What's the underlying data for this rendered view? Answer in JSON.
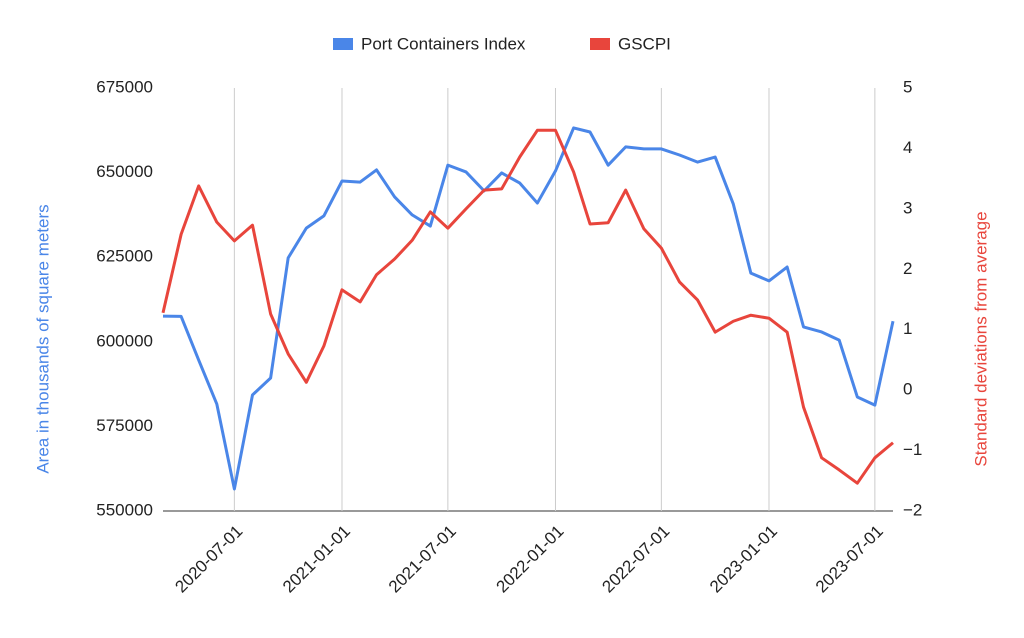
{
  "chart_data": {
    "type": "line",
    "x": [
      "2020-03-01",
      "2020-04-01",
      "2020-05-01",
      "2020-06-01",
      "2020-07-01",
      "2020-08-01",
      "2020-09-01",
      "2020-10-01",
      "2020-11-01",
      "2020-12-01",
      "2021-01-01",
      "2021-02-01",
      "2021-03-01",
      "2021-04-01",
      "2021-05-01",
      "2021-06-01",
      "2021-07-01",
      "2021-08-01",
      "2021-09-01",
      "2021-10-01",
      "2021-11-01",
      "2021-12-01",
      "2022-01-01",
      "2022-02-01",
      "2022-03-01",
      "2022-04-01",
      "2022-05-01",
      "2022-06-01",
      "2022-07-01",
      "2022-08-01",
      "2022-09-01",
      "2022-10-01",
      "2022-11-01",
      "2022-12-01",
      "2023-01-01",
      "2023-02-01",
      "2023-03-01",
      "2023-04-01",
      "2023-05-01",
      "2023-06-01",
      "2023-07-01",
      "2023-08-01"
    ],
    "series": [
      {
        "name": "Port Containers Index",
        "color": "#4a86e8",
        "values": [
          607600,
          607500,
          594600,
          581600,
          556500,
          584300,
          589300,
          624800,
          633600,
          637200,
          647500,
          647200,
          650800,
          642800,
          637500,
          634200,
          652200,
          650200,
          644600,
          649900,
          646900,
          641000,
          650500,
          663200,
          662000,
          652200,
          657600,
          657000,
          657000,
          655200,
          653100,
          654600,
          640700,
          620300,
          618000,
          622100,
          604400,
          602900,
          600500,
          583700,
          581300,
          606100
        ]
      },
      {
        "name": "GSCPI",
        "color": "#e8453c",
        "axis": "y2",
        "values": [
          1.28,
          2.58,
          3.38,
          2.78,
          2.47,
          2.73,
          1.26,
          0.6,
          0.13,
          0.73,
          1.66,
          1.46,
          1.91,
          2.17,
          2.48,
          2.95,
          2.68,
          3.0,
          3.31,
          3.33,
          3.86,
          4.3,
          4.3,
          3.61,
          2.75,
          2.77,
          3.31,
          2.67,
          2.35,
          1.79,
          1.49,
          0.96,
          1.14,
          1.24,
          1.19,
          0.96,
          -0.28,
          -1.12,
          -1.32,
          -1.54,
          -1.12,
          -0.87
        ]
      }
    ],
    "xlim": [
      "2020-03-01",
      "2023-08-01"
    ],
    "xticks": [
      "2020-07-01",
      "2021-01-01",
      "2021-07-01",
      "2022-01-01",
      "2022-07-01",
      "2023-01-01",
      "2023-07-01"
    ],
    "ylim": [
      550000,
      675000
    ],
    "yticks": [
      550000,
      575000,
      600000,
      625000,
      650000,
      675000
    ],
    "y2lim": [
      -2,
      5
    ],
    "y2ticks": [
      {
        "value": -2,
        "label": "−2"
      },
      {
        "value": -1,
        "label": "−1"
      },
      0,
      1,
      2,
      3,
      4,
      5
    ],
    "ylabel": "Area in thousands of square meters",
    "y2label": "Standard deviations from average",
    "grid": true,
    "legend": "top"
  }
}
